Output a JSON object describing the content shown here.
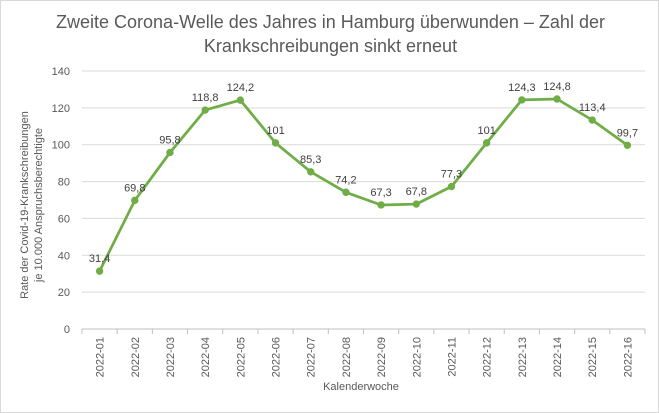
{
  "chart_data": {
    "type": "line",
    "title_line1": "Zweite Corona-Welle des Jahres in Hamburg überwunden – Zahl der",
    "title_line2": "Krankschreibungen sinkt erneut",
    "xlabel": "Kalenderwoche",
    "ylabel_line1": "Rate der Covid-19-Krankschreibungen",
    "ylabel_line2": "je 10.000 Anspruchsberechtigte",
    "categories": [
      "2022-01",
      "2022-02",
      "2022-03",
      "2022-04",
      "2022-05",
      "2022-06",
      "2022-07",
      "2022-08",
      "2022-09",
      "2022-10",
      "2022-11",
      "2022-12",
      "2022-13",
      "2022-14",
      "2022-15",
      "2022-16"
    ],
    "series": [
      {
        "name": "Rate",
        "values": [
          31.4,
          69.8,
          95.8,
          118.8,
          124.2,
          101,
          85.3,
          74.2,
          67.3,
          67.8,
          77.3,
          101,
          124.3,
          124.8,
          113.4,
          99.7
        ]
      }
    ],
    "data_labels": [
      "31,4",
      "69,8",
      "95,8",
      "118,8",
      "124,2",
      "101",
      "85,3",
      "74,2",
      "67,3",
      "67,8",
      "77,3",
      "101",
      "124,3",
      "124,8",
      "113,4",
      "99,7"
    ],
    "ylim": [
      0,
      140
    ],
    "yticks": [
      0,
      20,
      40,
      60,
      80,
      100,
      120,
      140
    ],
    "grid": true,
    "line_color": "#70AD47",
    "grid_color": "#D9D9D9",
    "axis_color": "#BFBFBF"
  }
}
